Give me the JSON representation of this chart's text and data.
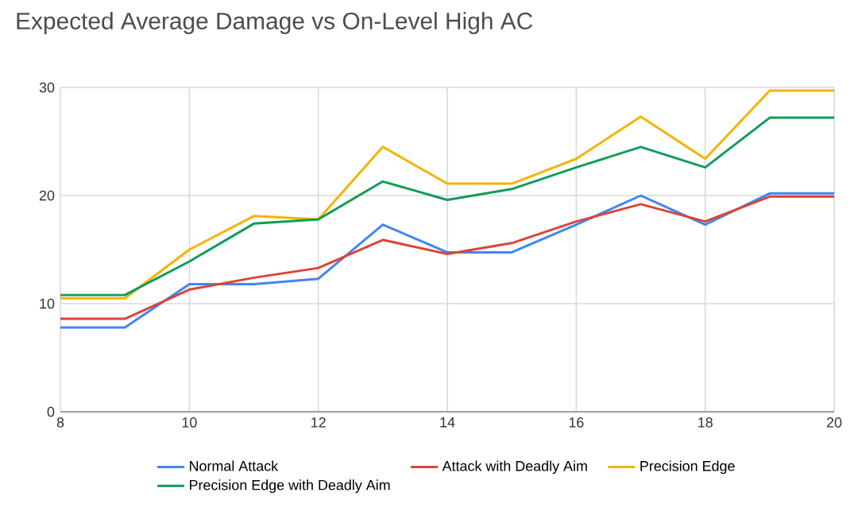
{
  "chart_data": {
    "type": "line",
    "title": "Expected Average Damage vs On-Level High AC",
    "x": [
      8,
      9,
      10,
      11,
      12,
      13,
      14,
      15,
      16,
      17,
      18,
      19,
      20
    ],
    "series": [
      {
        "name": "Normal Attack",
        "color": "#4285f4",
        "values": [
          7.8,
          7.8,
          11.8,
          11.8,
          12.3,
          17.3,
          14.75,
          14.75,
          17.3,
          20.0,
          17.3,
          20.2,
          20.2
        ]
      },
      {
        "name": "Attack with Deadly Aim",
        "color": "#db4437",
        "values": [
          8.6,
          8.6,
          11.3,
          12.4,
          13.3,
          15.9,
          14.6,
          15.6,
          17.6,
          19.2,
          17.6,
          19.9,
          19.9
        ]
      },
      {
        "name": "Precision Edge",
        "color": "#f4b400",
        "values": [
          10.5,
          10.5,
          15.0,
          18.1,
          17.8,
          24.5,
          21.1,
          21.1,
          23.4,
          27.3,
          23.4,
          29.7,
          29.7
        ]
      },
      {
        "name": "Precision Edge with Deadly Aim",
        "color": "#0f9d58",
        "values": [
          10.8,
          10.8,
          13.9,
          17.4,
          17.8,
          21.3,
          19.6,
          20.6,
          22.6,
          24.5,
          22.6,
          27.2,
          27.2
        ]
      }
    ],
    "xlim": [
      8,
      20
    ],
    "ylim": [
      0,
      30
    ],
    "xticks": [
      8,
      10,
      12,
      14,
      16,
      18,
      20
    ],
    "yticks": [
      0,
      10,
      20,
      30
    ],
    "grid": true,
    "legend": "bottom"
  }
}
